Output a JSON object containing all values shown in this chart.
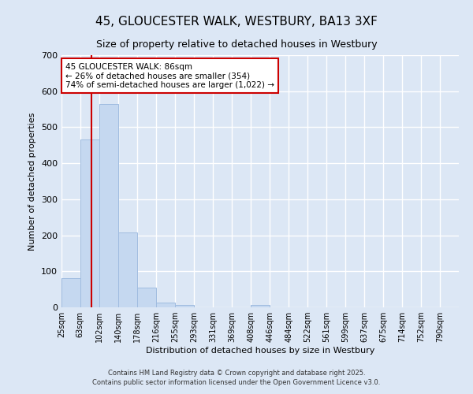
{
  "title": "45, GLOUCESTER WALK, WESTBURY, BA13 3XF",
  "subtitle": "Size of property relative to detached houses in Westbury",
  "xlabel": "Distribution of detached houses by size in Westbury",
  "ylabel": "Number of detached properties",
  "bar_color": "#c5d8f0",
  "bar_edge_color": "#a0bce0",
  "background_color": "#dce7f5",
  "grid_color": "#ffffff",
  "bin_edges": [
    25,
    63,
    102,
    140,
    178,
    216,
    255,
    293,
    331,
    369,
    408,
    446,
    484,
    522,
    561,
    599,
    637,
    675,
    714,
    752,
    790
  ],
  "bin_labels": [
    "25sqm",
    "63sqm",
    "102sqm",
    "140sqm",
    "178sqm",
    "216sqm",
    "255sqm",
    "293sqm",
    "331sqm",
    "369sqm",
    "408sqm",
    "446sqm",
    "484sqm",
    "522sqm",
    "561sqm",
    "599sqm",
    "637sqm",
    "675sqm",
    "714sqm",
    "752sqm",
    "790sqm"
  ],
  "bar_heights": [
    80,
    465,
    565,
    207,
    55,
    13,
    7,
    1,
    0,
    0,
    7,
    0,
    0,
    0,
    0,
    0,
    0,
    0,
    0,
    0
  ],
  "property_size": 86,
  "vline_color": "#cc0000",
  "annotation_line1": "45 GLOUCESTER WALK: 86sqm",
  "annotation_line2": "← 26% of detached houses are smaller (354)",
  "annotation_line3": "74% of semi-detached houses are larger (1,022) →",
  "annotation_box_color": "#ffffff",
  "annotation_box_edge_color": "#cc0000",
  "ylim": [
    0,
    700
  ],
  "yticks": [
    0,
    100,
    200,
    300,
    400,
    500,
    600,
    700
  ],
  "footer_line1": "Contains HM Land Registry data © Crown copyright and database right 2025.",
  "footer_line2": "Contains public sector information licensed under the Open Government Licence v3.0."
}
